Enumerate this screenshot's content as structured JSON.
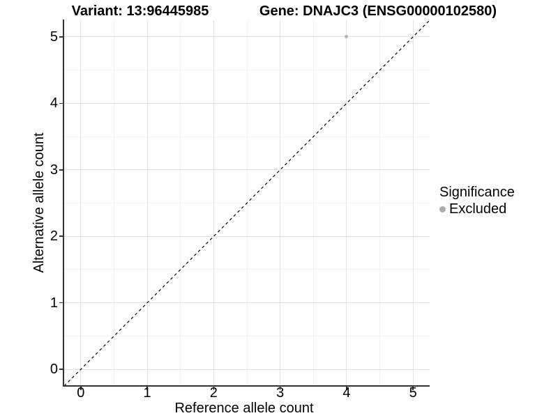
{
  "chart_data": {
    "type": "scatter",
    "title_left": "Variant: 13:96445985",
    "title_right": "Gene: DNAJC3 (ENSG00000102580)",
    "xlabel": "Reference allele count",
    "ylabel": "Alternative allele count",
    "xlim": [
      -0.25,
      5.25
    ],
    "ylim": [
      -0.25,
      5.25
    ],
    "xticks": [
      0,
      1,
      2,
      3,
      4,
      5
    ],
    "yticks": [
      0,
      1,
      2,
      3,
      4,
      5
    ],
    "minor_xticks": [
      0.5,
      1.5,
      2.5,
      3.5,
      4.5
    ],
    "minor_yticks": [
      0.5,
      1.5,
      2.5,
      3.5,
      4.5
    ],
    "grid": {
      "major": true,
      "minor": true
    },
    "series": [
      {
        "name": "Excluded",
        "color": "#b5b5b5",
        "marker_diameter_px": 5,
        "points": [
          {
            "x": 4,
            "y": 5
          }
        ]
      }
    ],
    "reference_line": {
      "style": "dashed",
      "color": "#000000",
      "from": {
        "x": -0.25,
        "y": -0.25
      },
      "to": {
        "x": 5.25,
        "y": 5.25
      }
    },
    "legend": {
      "position": "right",
      "title": "Significance",
      "entries": [
        {
          "label": "Excluded",
          "color": "#aaaaaa"
        }
      ]
    },
    "colors": {
      "grid_major": "#e3e3e3",
      "grid_minor": "#f2f2f2",
      "axis_line": "#333333",
      "text": "#000000"
    }
  }
}
